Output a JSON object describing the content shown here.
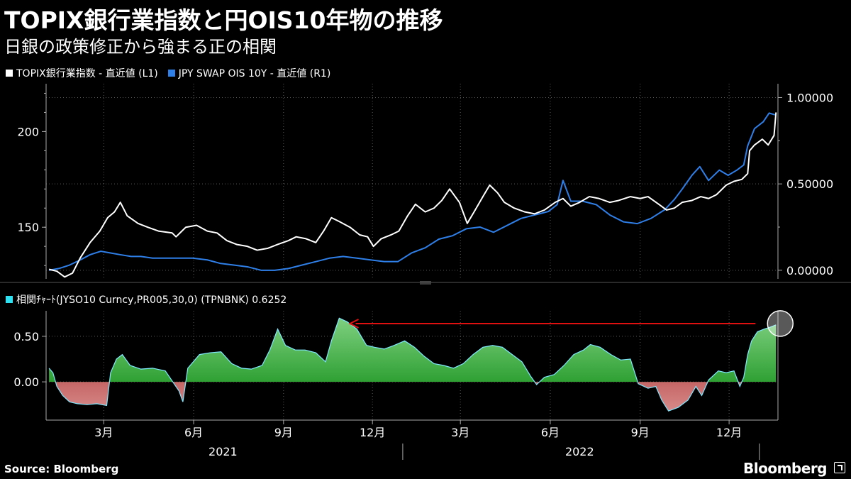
{
  "header": {
    "title": "TOPIX銀行業指数と円OIS10年物の推移",
    "subtitle": "日銀の政策修正から強まる正の相関"
  },
  "legend_top": {
    "series1": "TOPIX銀行業指数 - 直近値 (L1)",
    "series2": "JPY SWAP OIS 10Y - 直近値 (R1)"
  },
  "legend_bottom": {
    "label": "相関ﾁｬｰﾄ(JYSO10  Curncy,PR005,30,0) (TPNBNK) 0.6252"
  },
  "footer": {
    "source": "Source:  Bloomberg",
    "brand": "Bloomberg"
  },
  "colors": {
    "series1": "#ffffff",
    "series2": "#2f7fe8",
    "positive_fill": "#0a8a10",
    "negative_fill": "#9b1515",
    "correlation_line": "#7fe8ff",
    "arrow": "#e01010",
    "grid": "#5a5a5a"
  },
  "chart_data": [
    {
      "type": "line",
      "title": "TOPIX銀行業指数と円OIS10年物の推移",
      "y_left_ticks": [
        "150",
        "200"
      ],
      "y_right_ticks": [
        "0.00000",
        "0.50000",
        "1.00000"
      ],
      "y_left_range": [
        123,
        225
      ],
      "y_right_range": [
        -0.05,
        1.08
      ],
      "x_range": [
        "2021-01-01",
        "2023-01-20"
      ],
      "series": [
        {
          "name": "TOPIX銀行業指数 - 直近値 (L1)",
          "axis": "left",
          "points": [
            [
              "2021-01-04",
              128
            ],
            [
              "2021-01-12",
              127
            ],
            [
              "2021-01-20",
              124
            ],
            [
              "2021-01-28",
              126
            ],
            [
              "2021-02-05",
              134
            ],
            [
              "2021-02-15",
              142
            ],
            [
              "2021-02-25",
              148
            ],
            [
              "2021-03-05",
              155
            ],
            [
              "2021-03-12",
              158
            ],
            [
              "2021-03-18",
              163
            ],
            [
              "2021-03-25",
              156
            ],
            [
              "2021-04-05",
              152
            ],
            [
              "2021-04-15",
              150
            ],
            [
              "2021-04-26",
              148
            ],
            [
              "2021-05-10",
              147
            ],
            [
              "2021-05-14",
              145
            ],
            [
              "2021-05-24",
              150
            ],
            [
              "2021-06-04",
              151
            ],
            [
              "2021-06-15",
              148
            ],
            [
              "2021-06-25",
              147
            ],
            [
              "2021-07-05",
              143
            ],
            [
              "2021-07-15",
              141
            ],
            [
              "2021-07-26",
              140
            ],
            [
              "2021-08-05",
              138
            ],
            [
              "2021-08-16",
              139
            ],
            [
              "2021-08-26",
              141
            ],
            [
              "2021-09-06",
              143
            ],
            [
              "2021-09-14",
              145
            ],
            [
              "2021-09-24",
              144
            ],
            [
              "2021-10-04",
              142
            ],
            [
              "2021-10-12",
              148
            ],
            [
              "2021-10-20",
              155
            ],
            [
              "2021-10-28",
              153
            ],
            [
              "2021-11-08",
              150
            ],
            [
              "2021-11-18",
              146
            ],
            [
              "2021-11-26",
              145
            ],
            [
              "2021-12-02",
              140
            ],
            [
              "2021-12-10",
              144
            ],
            [
              "2021-12-20",
              146
            ],
            [
              "2021-12-28",
              148
            ],
            [
              "2022-01-06",
              156
            ],
            [
              "2022-01-14",
              162
            ],
            [
              "2022-01-24",
              158
            ],
            [
              "2022-02-02",
              160
            ],
            [
              "2022-02-10",
              164
            ],
            [
              "2022-02-18",
              170
            ],
            [
              "2022-02-28",
              163
            ],
            [
              "2022-03-08",
              152
            ],
            [
              "2022-03-15",
              158
            ],
            [
              "2022-03-24",
              166
            ],
            [
              "2022-03-31",
              172
            ],
            [
              "2022-04-08",
              168
            ],
            [
              "2022-04-15",
              163
            ],
            [
              "2022-04-25",
              160
            ],
            [
              "2022-05-06",
              158
            ],
            [
              "2022-05-16",
              157
            ],
            [
              "2022-05-26",
              159
            ],
            [
              "2022-06-06",
              163
            ],
            [
              "2022-06-14",
              165
            ],
            [
              "2022-06-22",
              161
            ],
            [
              "2022-07-01",
              163
            ],
            [
              "2022-07-11",
              166
            ],
            [
              "2022-07-21",
              165
            ],
            [
              "2022-08-01",
              163
            ],
            [
              "2022-08-10",
              164
            ],
            [
              "2022-08-22",
              166
            ],
            [
              "2022-09-01",
              165
            ],
            [
              "2022-09-09",
              166
            ],
            [
              "2022-09-20",
              162
            ],
            [
              "2022-09-28",
              159
            ],
            [
              "2022-10-06",
              160
            ],
            [
              "2022-10-14",
              163
            ],
            [
              "2022-10-24",
              164
            ],
            [
              "2022-11-02",
              166
            ],
            [
              "2022-11-10",
              165
            ],
            [
              "2022-11-18",
              167
            ],
            [
              "2022-11-28",
              172
            ],
            [
              "2022-12-06",
              174
            ],
            [
              "2022-12-14",
              175
            ],
            [
              "2022-12-20",
              178
            ],
            [
              "2022-12-22",
              190
            ],
            [
              "2022-12-27",
              193
            ],
            [
              "2023-01-04",
              196
            ],
            [
              "2023-01-10",
              193
            ],
            [
              "2023-01-16",
              198
            ],
            [
              "2023-01-18",
              210
            ]
          ]
        },
        {
          "name": "JPY SWAP OIS 10Y - 直近値 (R1)",
          "axis": "right",
          "points": [
            [
              "2021-01-04",
              0.0
            ],
            [
              "2021-01-14",
              0.01
            ],
            [
              "2021-01-25",
              0.03
            ],
            [
              "2021-02-05",
              0.06
            ],
            [
              "2021-02-15",
              0.09
            ],
            [
              "2021-02-26",
              0.11
            ],
            [
              "2021-03-08",
              0.1
            ],
            [
              "2021-03-18",
              0.09
            ],
            [
              "2021-03-29",
              0.08
            ],
            [
              "2021-04-08",
              0.08
            ],
            [
              "2021-04-20",
              0.07
            ],
            [
              "2021-05-03",
              0.07
            ],
            [
              "2021-05-17",
              0.07
            ],
            [
              "2021-05-31",
              0.07
            ],
            [
              "2021-06-15",
              0.06
            ],
            [
              "2021-06-28",
              0.04
            ],
            [
              "2021-07-12",
              0.03
            ],
            [
              "2021-07-26",
              0.02
            ],
            [
              "2021-08-09",
              0.0
            ],
            [
              "2021-08-23",
              0.0
            ],
            [
              "2021-09-06",
              0.01
            ],
            [
              "2021-09-20",
              0.03
            ],
            [
              "2021-10-04",
              0.05
            ],
            [
              "2021-10-18",
              0.07
            ],
            [
              "2021-11-01",
              0.08
            ],
            [
              "2021-11-15",
              0.07
            ],
            [
              "2021-11-29",
              0.06
            ],
            [
              "2021-12-13",
              0.05
            ],
            [
              "2021-12-27",
              0.05
            ],
            [
              "2022-01-10",
              0.1
            ],
            [
              "2022-01-24",
              0.13
            ],
            [
              "2022-02-07",
              0.18
            ],
            [
              "2022-02-21",
              0.2
            ],
            [
              "2022-03-07",
              0.24
            ],
            [
              "2022-03-21",
              0.25
            ],
            [
              "2022-04-04",
              0.22
            ],
            [
              "2022-04-18",
              0.26
            ],
            [
              "2022-05-02",
              0.3
            ],
            [
              "2022-05-16",
              0.32
            ],
            [
              "2022-05-30",
              0.34
            ],
            [
              "2022-06-08",
              0.38
            ],
            [
              "2022-06-14",
              0.52
            ],
            [
              "2022-06-22",
              0.4
            ],
            [
              "2022-07-04",
              0.4
            ],
            [
              "2022-07-18",
              0.38
            ],
            [
              "2022-08-01",
              0.32
            ],
            [
              "2022-08-15",
              0.28
            ],
            [
              "2022-08-29",
              0.27
            ],
            [
              "2022-09-12",
              0.3
            ],
            [
              "2022-09-26",
              0.35
            ],
            [
              "2022-10-06",
              0.41
            ],
            [
              "2022-10-14",
              0.47
            ],
            [
              "2022-10-24",
              0.55
            ],
            [
              "2022-11-01",
              0.6
            ],
            [
              "2022-11-10",
              0.52
            ],
            [
              "2022-11-21",
              0.58
            ],
            [
              "2022-11-30",
              0.55
            ],
            [
              "2022-12-09",
              0.58
            ],
            [
              "2022-12-16",
              0.61
            ],
            [
              "2022-12-20",
              0.72
            ],
            [
              "2022-12-27",
              0.82
            ],
            [
              "2023-01-05",
              0.86
            ],
            [
              "2023-01-11",
              0.91
            ],
            [
              "2023-01-17",
              0.9
            ]
          ]
        }
      ]
    },
    {
      "type": "area",
      "title": "相関ﾁｬｰﾄ(JYSO10  Curncy,PR005,30,0) (TPNBNK) 0.6252",
      "y_ticks": [
        "0.00",
        "0.50"
      ],
      "y_range": [
        -0.42,
        0.78
      ],
      "last_value": 0.6252,
      "x_tick_labels": [
        "3月",
        "6月",
        "9月",
        "12月",
        "3月",
        "6月",
        "9月",
        "12月"
      ],
      "x_tick_dates": [
        "2021-03-01",
        "2021-06-01",
        "2021-09-01",
        "2021-12-01",
        "2022-03-01",
        "2022-06-01",
        "2022-09-01",
        "2022-12-01"
      ],
      "year_labels": [
        "2021",
        "2022"
      ],
      "year_label_dates": [
        "2021-07-01",
        "2022-07-01"
      ],
      "points": [
        [
          "2021-01-04",
          0.15
        ],
        [
          "2021-01-08",
          0.1
        ],
        [
          "2021-01-12",
          -0.05
        ],
        [
          "2021-01-18",
          -0.15
        ],
        [
          "2021-01-25",
          -0.22
        ],
        [
          "2021-02-02",
          -0.24
        ],
        [
          "2021-02-12",
          -0.25
        ],
        [
          "2021-02-22",
          -0.24
        ],
        [
          "2021-03-04",
          -0.26
        ],
        [
          "2021-03-08",
          0.1
        ],
        [
          "2021-03-14",
          0.25
        ],
        [
          "2021-03-20",
          0.3
        ],
        [
          "2021-03-28",
          0.18
        ],
        [
          "2021-04-08",
          0.14
        ],
        [
          "2021-04-20",
          0.15
        ],
        [
          "2021-05-03",
          0.12
        ],
        [
          "2021-05-17",
          -0.1
        ],
        [
          "2021-05-21",
          -0.22
        ],
        [
          "2021-05-26",
          0.15
        ],
        [
          "2021-06-07",
          0.3
        ],
        [
          "2021-06-18",
          0.32
        ],
        [
          "2021-06-29",
          0.33
        ],
        [
          "2021-07-10",
          0.2
        ],
        [
          "2021-07-20",
          0.15
        ],
        [
          "2021-07-30",
          0.14
        ],
        [
          "2021-08-10",
          0.18
        ],
        [
          "2021-08-18",
          0.35
        ],
        [
          "2021-08-26",
          0.58
        ],
        [
          "2021-09-03",
          0.4
        ],
        [
          "2021-09-13",
          0.35
        ],
        [
          "2021-09-23",
          0.35
        ],
        [
          "2021-10-04",
          0.32
        ],
        [
          "2021-10-14",
          0.22
        ],
        [
          "2021-10-20",
          0.45
        ],
        [
          "2021-10-28",
          0.7
        ],
        [
          "2021-11-05",
          0.66
        ],
        [
          "2021-11-15",
          0.58
        ],
        [
          "2021-11-25",
          0.4
        ],
        [
          "2021-12-03",
          0.38
        ],
        [
          "2021-12-13",
          0.36
        ],
        [
          "2021-12-23",
          0.4
        ],
        [
          "2022-01-03",
          0.45
        ],
        [
          "2022-01-13",
          0.38
        ],
        [
          "2022-01-23",
          0.28
        ],
        [
          "2022-02-02",
          0.2
        ],
        [
          "2022-02-12",
          0.18
        ],
        [
          "2022-02-22",
          0.15
        ],
        [
          "2022-03-04",
          0.2
        ],
        [
          "2022-03-14",
          0.3
        ],
        [
          "2022-03-24",
          0.38
        ],
        [
          "2022-04-03",
          0.4
        ],
        [
          "2022-04-13",
          0.38
        ],
        [
          "2022-04-23",
          0.3
        ],
        [
          "2022-05-03",
          0.22
        ],
        [
          "2022-05-12",
          0.06
        ],
        [
          "2022-05-18",
          -0.03
        ],
        [
          "2022-05-26",
          0.05
        ],
        [
          "2022-06-05",
          0.08
        ],
        [
          "2022-06-15",
          0.18
        ],
        [
          "2022-06-25",
          0.3
        ],
        [
          "2022-07-05",
          0.35
        ],
        [
          "2022-07-12",
          0.41
        ],
        [
          "2022-07-22",
          0.38
        ],
        [
          "2022-08-02",
          0.3
        ],
        [
          "2022-08-12",
          0.24
        ],
        [
          "2022-08-22",
          0.25
        ],
        [
          "2022-08-30",
          -0.02
        ],
        [
          "2022-09-09",
          -0.07
        ],
        [
          "2022-09-17",
          -0.05
        ],
        [
          "2022-09-23",
          -0.2
        ],
        [
          "2022-09-30",
          -0.32
        ],
        [
          "2022-10-10",
          -0.28
        ],
        [
          "2022-10-20",
          -0.2
        ],
        [
          "2022-10-28",
          -0.05
        ],
        [
          "2022-11-03",
          -0.15
        ],
        [
          "2022-11-10",
          0.02
        ],
        [
          "2022-11-20",
          0.12
        ],
        [
          "2022-11-28",
          0.1
        ],
        [
          "2022-12-06",
          0.12
        ],
        [
          "2022-12-12",
          -0.05
        ],
        [
          "2022-12-16",
          0.05
        ],
        [
          "2022-12-20",
          0.3
        ],
        [
          "2022-12-24",
          0.45
        ],
        [
          "2022-12-30",
          0.55
        ],
        [
          "2023-01-06",
          0.58
        ],
        [
          "2023-01-12",
          0.6
        ],
        [
          "2023-01-18",
          0.6252
        ]
      ]
    }
  ]
}
